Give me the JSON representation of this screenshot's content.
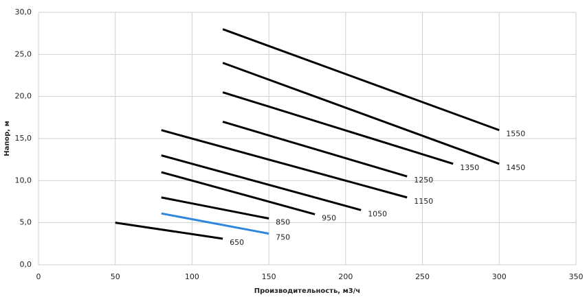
{
  "chart_data": {
    "type": "line",
    "xlabel": "Производительность,  м3/ч",
    "ylabel": "Напор, м",
    "xlim": [
      0,
      350
    ],
    "xticks": [
      0,
      50,
      100,
      150,
      200,
      250,
      300,
      350
    ],
    "ylim": [
      0,
      30
    ],
    "yticks": [
      {
        "value": 0,
        "label": "0,0"
      },
      {
        "value": 5,
        "label": "5,0"
      },
      {
        "value": 10,
        "label": "10,0"
      },
      {
        "value": 15,
        "label": "15,0"
      },
      {
        "value": 20,
        "label": "20,0"
      },
      {
        "value": 25,
        "label": "25,0"
      },
      {
        "value": 30,
        "label": "30,0"
      }
    ],
    "grid": true,
    "series": [
      {
        "name": "650",
        "color": "#000000",
        "x": [
          50,
          120
        ],
        "values": [
          5.0,
          3.1
        ]
      },
      {
        "name": "750",
        "color": "#2e86de",
        "x": [
          80,
          150
        ],
        "values": [
          6.1,
          3.7
        ]
      },
      {
        "name": "850",
        "color": "#000000",
        "x": [
          80,
          150
        ],
        "values": [
          8.0,
          5.5
        ]
      },
      {
        "name": "950",
        "color": "#000000",
        "x": [
          80,
          180
        ],
        "values": [
          11.0,
          6.0
        ]
      },
      {
        "name": "1050",
        "color": "#000000",
        "x": [
          80,
          210
        ],
        "values": [
          13.0,
          6.5
        ]
      },
      {
        "name": "1150",
        "color": "#000000",
        "x": [
          80,
          240
        ],
        "values": [
          16.0,
          8.0
        ]
      },
      {
        "name": "1250",
        "color": "#000000",
        "x": [
          120,
          240
        ],
        "values": [
          17.0,
          10.5
        ]
      },
      {
        "name": "1350",
        "color": "#000000",
        "x": [
          120,
          270
        ],
        "values": [
          20.5,
          12.0
        ]
      },
      {
        "name": "1450",
        "color": "#000000",
        "x": [
          120,
          300
        ],
        "values": [
          24.0,
          12.0
        ]
      },
      {
        "name": "1550",
        "color": "#000000",
        "x": [
          120,
          300
        ],
        "values": [
          28.0,
          16.0
        ]
      }
    ]
  }
}
